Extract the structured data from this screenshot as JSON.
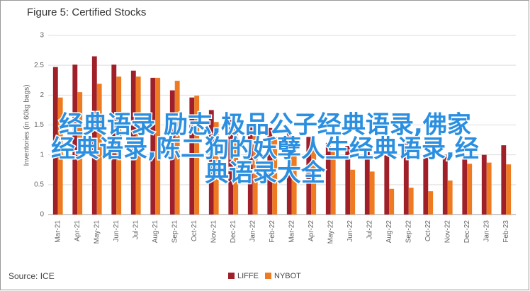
{
  "chart_data": {
    "type": "bar",
    "title": "Figure 5: Certified Stocks",
    "y_label": "Inventories (in 60kg bags)",
    "source": "Source: ICE",
    "categories": [
      "Mar-21",
      "Apr-21",
      "May-21",
      "Jun-21",
      "Jul-21",
      "Aug-21",
      "Sep-21",
      "Oct-21",
      "Nov-21",
      "Dec-21",
      "Jan-22",
      "Feb-22",
      "Mar-22",
      "Apr-22",
      "May-22",
      "Jun-22",
      "Jul-22",
      "Aug-22",
      "Sep-22",
      "Oct-22",
      "Nov-22",
      "Dec-22",
      "Jan-23",
      "Feb-23"
    ],
    "series": [
      {
        "name": "LIFFE",
        "color": "#a0202a",
        "values": [
          2.47,
          2.51,
          2.65,
          2.51,
          2.41,
          2.29,
          2.08,
          1.96,
          1.75,
          1.6,
          1.5,
          1.45,
          1.4,
          1.3,
          1.2,
          1.15,
          1.1,
          1.05,
          1.2,
          1.0,
          1.0,
          0.95,
          1.0,
          1.16
        ]
      },
      {
        "name": "NYBOT",
        "color": "#ee7b22",
        "values": [
          1.96,
          2.05,
          2.19,
          2.31,
          2.31,
          2.29,
          2.24,
          1.99,
          1.55,
          1.45,
          1.4,
          1.3,
          1.2,
          1.1,
          1.05,
          0.75,
          0.72,
          0.43,
          0.45,
          0.39,
          0.57,
          0.85,
          0.87,
          0.84
        ]
      }
    ],
    "ylim": [
      0,
      3
    ],
    "yticks": [
      0,
      0.5,
      1,
      1.5,
      2,
      2.5,
      3
    ],
    "grid": true,
    "legend": "bottom",
    "overlay_lines": [
      "经典语录 励志,极品公子经典语录,佛家",
      "经典语录,陈二狗的妖孽人生经典语录,经",
      "典语录大全"
    ]
  }
}
